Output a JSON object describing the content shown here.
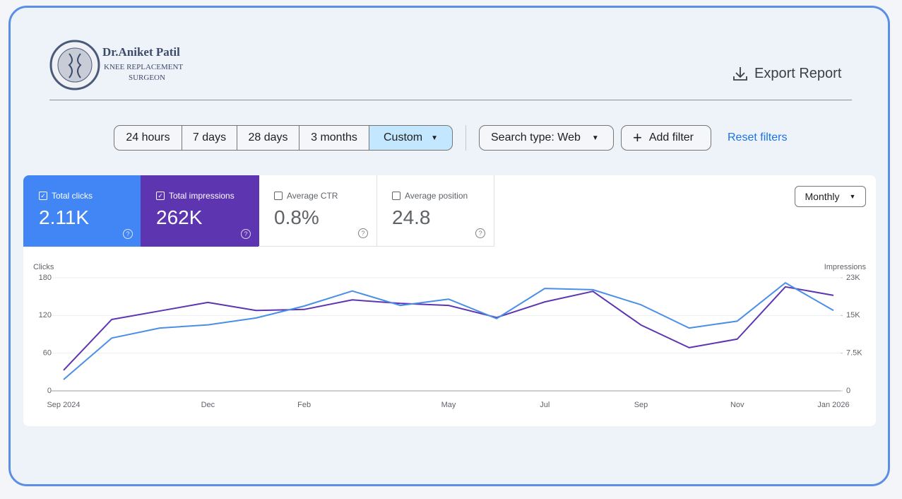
{
  "header": {
    "logo_name": "Dr.Aniket Patil",
    "logo_line1": "KNEE REPLACEMENT",
    "logo_line2": "SURGEON",
    "export": "Export Report"
  },
  "filters": {
    "ranges": [
      "24 hours",
      "7 days",
      "28 days",
      "3 months",
      "Custom"
    ],
    "search_type": "Search type: Web",
    "add_filter": "Add filter",
    "reset": "Reset filters"
  },
  "metrics": [
    {
      "value": "2.11K"
    },
    {
      "value": "262K"
    },
    {
      "label": "Average CTR",
      "value": "0.8%"
    },
    {
      "label": "Average position",
      "value": "24.8"
    }
  ],
  "granularity": "Monthly",
  "chart_data": {
    "type": "line",
    "y_label": "Clicks",
    "y2_label": "Impressions",
    "categories": [
      "Sep 2024",
      null,
      null,
      "Dec",
      null,
      "Feb",
      null,
      null,
      "May",
      null,
      "Jul",
      null,
      "Sep",
      null,
      "Nov",
      null,
      "Jan 2026"
    ],
    "series": [
      {
        "name": "Total clicks",
        "color": "#4a8fe7",
        "values": [
          18,
          84,
          100,
          105,
          116,
          135,
          159,
          136,
          146,
          115,
          163,
          161,
          137,
          100,
          111,
          172,
          128
        ]
      },
      {
        "name": "Total impressions",
        "color": "#5e35b1",
        "axis": "y2",
        "values": [
          4100,
          14200,
          15900,
          17600,
          16000,
          16200,
          18100,
          17400,
          17000,
          14600,
          17700,
          19800,
          13100,
          8600,
          10300,
          20700,
          19000
        ]
      }
    ],
    "ylim": [
      0,
      180
    ],
    "yticks": [
      0,
      60,
      120,
      180
    ],
    "y2lim": [
      0,
      22500
    ],
    "y2ticks": [
      0,
      {
        "value": 7500,
        "label": "7.5K"
      },
      {
        "value": 15000,
        "label": "15K"
      },
      {
        "value": 22500,
        "label": "23K"
      }
    ],
    "grid": true
  }
}
